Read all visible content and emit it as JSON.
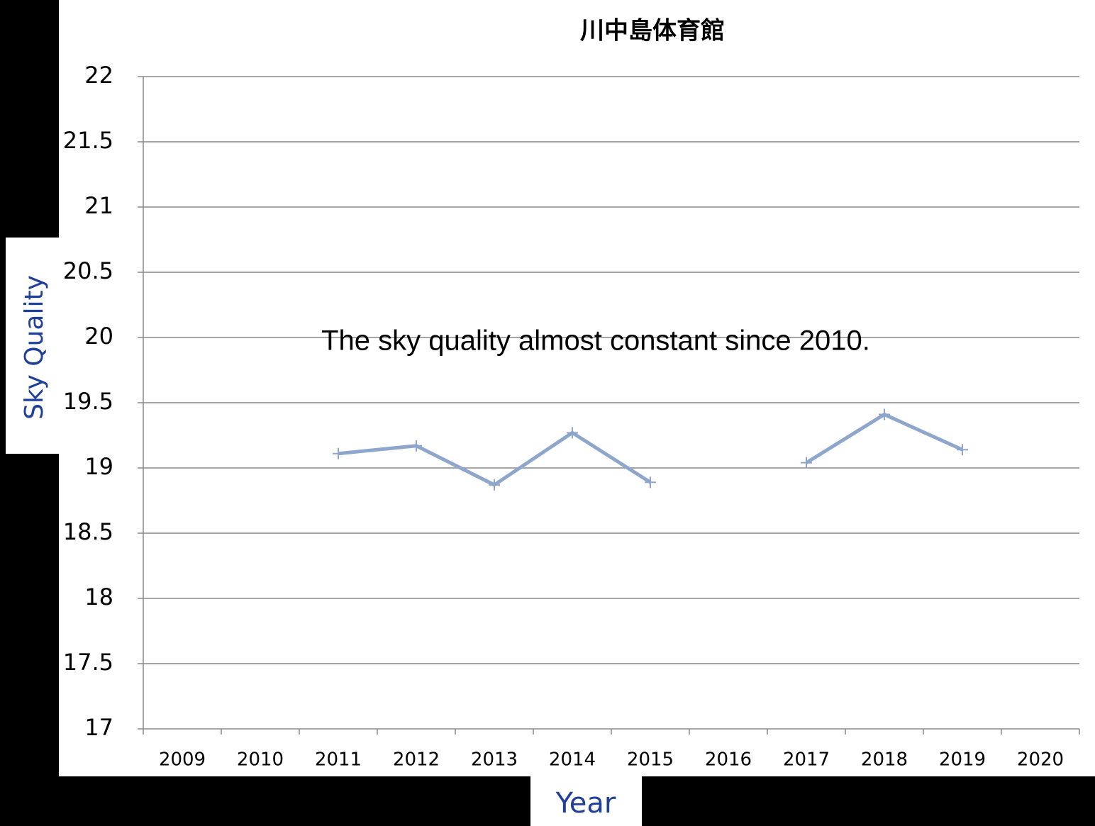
{
  "chart_data": {
    "type": "line",
    "title": "川中島体育館",
    "annotation": "The sky quality almost constant since 2010.",
    "y_label": "Sky Quality",
    "x_label": "Year",
    "categories": [
      "2009",
      "2010",
      "2011",
      "2012",
      "2013",
      "2014",
      "2015",
      "2016",
      "2017",
      "2018",
      "2019",
      "2020"
    ],
    "series": [
      {
        "name": "Sky Quality",
        "color": "#8ea6cc",
        "values": [
          null,
          null,
          19.11,
          19.17,
          18.87,
          19.27,
          18.89,
          null,
          19.04,
          19.41,
          19.14,
          null
        ]
      }
    ],
    "ylim": [
      17,
      22
    ],
    "yticks": [
      17,
      17.5,
      18,
      18.5,
      19,
      19.5,
      20,
      20.5,
      21,
      21.5,
      22
    ],
    "grid": true
  }
}
